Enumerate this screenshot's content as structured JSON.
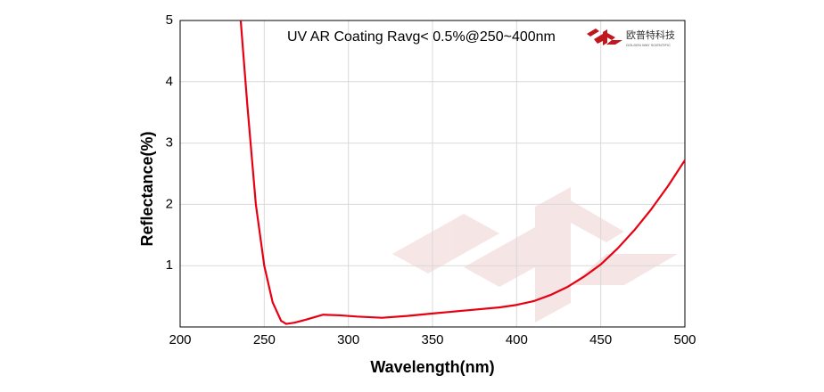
{
  "chart_data": {
    "type": "line",
    "annotation": "UV AR Coating Ravg< 0.5%@250~400nm",
    "logo_name": "欧普特科技",
    "logo_subtitle": "GOLDEN WAY SCIENTIFIC",
    "x_label": "Wavelength(nm)",
    "y_label": "Reflectance(%)",
    "xlim": [
      200,
      500
    ],
    "ylim": [
      0,
      5
    ],
    "xticks": [
      200,
      250,
      300,
      350,
      400,
      450,
      500
    ],
    "yticks": [
      1,
      2,
      3,
      4,
      5
    ],
    "grid": true,
    "series": [
      {
        "name": "Reflectance",
        "color": "#e60012",
        "x": [
          236,
          240,
          245,
          250,
          255,
          260,
          263,
          268,
          275,
          285,
          295,
          305,
          320,
          335,
          350,
          370,
          390,
          400,
          410,
          420,
          430,
          440,
          450,
          460,
          470,
          480,
          490,
          500
        ],
        "values": [
          5.0,
          3.6,
          2.0,
          1.0,
          0.4,
          0.1,
          0.05,
          0.07,
          0.12,
          0.2,
          0.19,
          0.17,
          0.15,
          0.18,
          0.22,
          0.27,
          0.32,
          0.36,
          0.42,
          0.52,
          0.65,
          0.82,
          1.02,
          1.28,
          1.58,
          1.92,
          2.3,
          2.72
        ]
      }
    ]
  }
}
